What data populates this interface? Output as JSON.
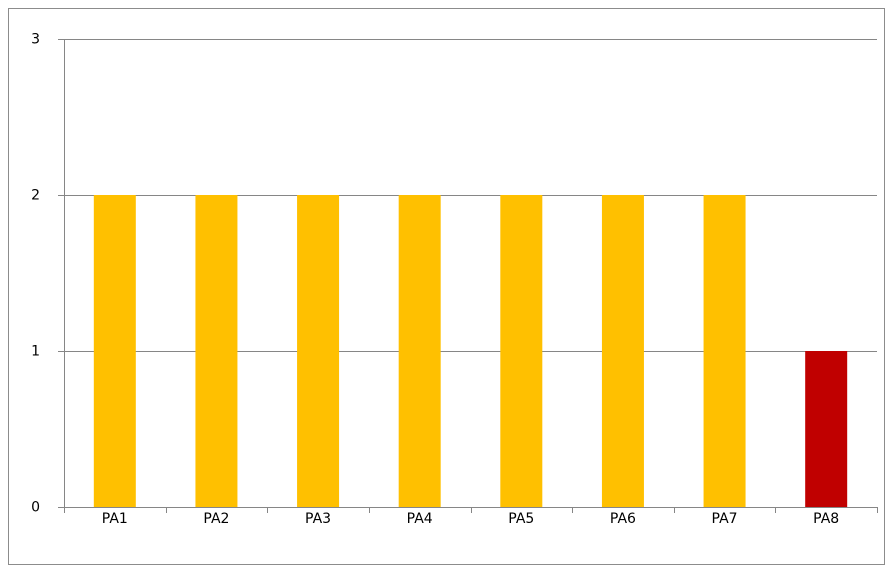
{
  "chart_data": {
    "type": "bar",
    "categories": [
      "PA1",
      "PA2",
      "PA3",
      "PA4",
      "PA5",
      "PA6",
      "PA7",
      "PA8"
    ],
    "values": [
      2,
      2,
      2,
      2,
      2,
      2,
      2,
      1
    ],
    "colors": [
      "#ffc000",
      "#ffc000",
      "#ffc000",
      "#ffc000",
      "#ffc000",
      "#ffc000",
      "#ffc000",
      "#c00000"
    ],
    "ylim": [
      0,
      3
    ],
    "yticks": [
      0,
      1,
      2,
      3
    ],
    "grid": true
  }
}
